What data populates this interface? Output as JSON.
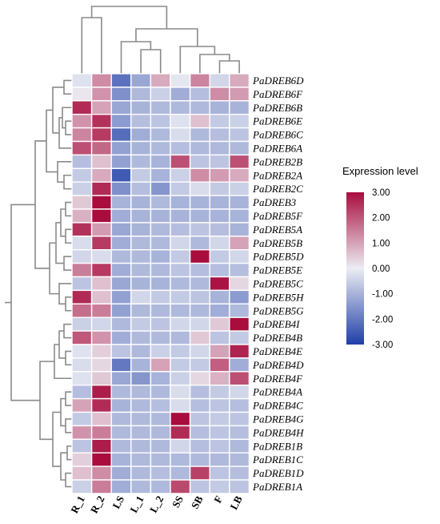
{
  "chart_data": {
    "type": "heatmap",
    "columns": [
      "R_1",
      "R_2",
      "LS",
      "L_1",
      "L_2",
      "SS",
      "SB",
      "F",
      "LB"
    ],
    "rows": [
      "PaDREB6D",
      "PaDREB6F",
      "PaDREB6B",
      "PaDREB6E",
      "PaDREB6C",
      "PaDREB6A",
      "PaDREB2B",
      "PaDREB2A",
      "PaDREB2C",
      "PaDREB3",
      "PaDREB5F",
      "PaDREB5A",
      "PaDREB5B",
      "PaDREB5D",
      "PaDREB5E",
      "PaDREB5C",
      "PaDREB5H",
      "PaDREB5G",
      "PaDREB4I",
      "PaDREB4B",
      "PaDREB4E",
      "PaDREB4D",
      "PaDREB4F",
      "PaDREB4A",
      "PaDREB4C",
      "PaDREB4G",
      "PaDREB4H",
      "PaDREB1B",
      "PaDREB1C",
      "PaDREB1D",
      "PaDREB1A"
    ],
    "values": [
      [
        -0.2,
        1.3,
        -2.1,
        -1.2,
        0.9,
        -0.1,
        1.4,
        -0.4,
        0.9
      ],
      [
        0.1,
        1.2,
        -1.6,
        -0.9,
        -0.5,
        -1.1,
        -0.8,
        1.3,
        1.1
      ],
      [
        2.6,
        1.0,
        -1.2,
        -1.0,
        -0.9,
        -0.9,
        -0.9,
        -1.0,
        -1.0
      ],
      [
        1.2,
        2.5,
        -1.4,
        -0.8,
        -0.7,
        -0.2,
        0.6,
        -0.6,
        -0.5
      ],
      [
        1.4,
        2.4,
        -2.2,
        -1.1,
        -0.9,
        -0.3,
        -0.9,
        -0.8,
        -0.7
      ],
      [
        2.1,
        1.8,
        -1.3,
        -1.0,
        -0.9,
        -0.8,
        -0.9,
        -0.9,
        -0.9
      ],
      [
        -0.8,
        0.6,
        -1.3,
        -0.9,
        -1.0,
        2.1,
        -0.7,
        -0.7,
        2.1
      ],
      [
        -0.6,
        0.9,
        -2.5,
        -0.6,
        -1.0,
        -0.5,
        1.3,
        1.1,
        0.9
      ],
      [
        -0.5,
        2.6,
        -1.6,
        -0.8,
        -1.5,
        -0.6,
        -0.3,
        -0.6,
        -0.5
      ],
      [
        0.5,
        3.0,
        -1.0,
        -1.0,
        -0.9,
        -1.0,
        -1.0,
        -1.0,
        -1.0
      ],
      [
        0.8,
        3.0,
        -1.1,
        -1.0,
        -1.0,
        -1.0,
        -1.0,
        -1.0,
        -1.0
      ],
      [
        2.5,
        1.1,
        -1.2,
        -1.0,
        -0.9,
        -0.8,
        -0.7,
        -0.8,
        -1.0
      ],
      [
        -0.3,
        2.4,
        -1.1,
        -0.9,
        -0.9,
        -0.4,
        -0.9,
        -0.4,
        1.0
      ],
      [
        -0.4,
        -0.3,
        -0.9,
        -0.9,
        -1.0,
        -0.6,
        3.0,
        -0.6,
        -0.4
      ],
      [
        1.5,
        2.4,
        -1.1,
        -0.9,
        -0.9,
        -0.7,
        -0.8,
        -0.8,
        -0.8
      ],
      [
        -0.7,
        0.6,
        -1.2,
        -1.0,
        -1.0,
        -0.9,
        -0.9,
        2.9,
        0.3
      ],
      [
        2.6,
        0.6,
        -1.3,
        -0.4,
        -0.6,
        -0.6,
        -0.7,
        -1.0,
        -1.4
      ],
      [
        1.7,
        1.5,
        -1.3,
        -0.9,
        -0.9,
        -0.9,
        -0.9,
        -1.1,
        -0.9
      ],
      [
        -0.5,
        -0.4,
        -0.9,
        -0.6,
        -0.7,
        -0.4,
        -0.4,
        0.5,
        3.0
      ],
      [
        2.0,
        1.2,
        -1.1,
        -0.9,
        -0.9,
        -0.9,
        0.5,
        -0.7,
        -0.6
      ],
      [
        -0.2,
        0.4,
        -0.7,
        -0.9,
        -0.5,
        -0.6,
        -0.4,
        1.0,
        2.7
      ],
      [
        -0.3,
        0.3,
        -2.0,
        -1.0,
        1.0,
        -0.6,
        -0.6,
        1.9,
        -1.1
      ],
      [
        -0.2,
        0.5,
        -1.2,
        -1.5,
        -1.0,
        -0.5,
        0.3,
        0.8,
        2.1
      ],
      [
        -0.8,
        2.8,
        -0.9,
        -0.9,
        -0.9,
        -0.3,
        -0.8,
        -0.6,
        -0.4
      ],
      [
        1.0,
        2.6,
        -1.0,
        -0.9,
        -0.8,
        -0.3,
        -0.8,
        -0.7,
        -0.8
      ],
      [
        -0.6,
        0.6,
        -0.9,
        -0.9,
        -0.9,
        3.0,
        -0.7,
        -0.6,
        -0.7
      ],
      [
        1.2,
        1.5,
        -0.9,
        -0.9,
        -0.9,
        2.6,
        -0.8,
        -0.7,
        -0.8
      ],
      [
        -0.7,
        2.8,
        -0.9,
        -0.9,
        -0.9,
        -0.4,
        -0.8,
        -0.7,
        -0.9
      ],
      [
        0.4,
        3.0,
        -1.0,
        -0.9,
        -0.9,
        -0.9,
        -0.9,
        -0.9,
        -0.9
      ],
      [
        0.6,
        1.3,
        -1.1,
        -0.9,
        -0.8,
        -0.9,
        2.3,
        -0.7,
        -0.8
      ],
      [
        -0.5,
        1.5,
        -1.1,
        -0.9,
        -0.9,
        2.2,
        -0.7,
        -0.6,
        -0.7
      ]
    ],
    "legend": {
      "title": "Expression level",
      "ticks": [
        "3.00",
        "2.00",
        "1.00",
        "0.00",
        "-1.00",
        "-2.00",
        "-3.00"
      ],
      "min": -3,
      "max": 3,
      "colors": {
        "high": "#a80d3e",
        "mid": "#ecedf3",
        "low": "#1f3ea7"
      }
    },
    "grid": false,
    "legend_placement": "right"
  }
}
